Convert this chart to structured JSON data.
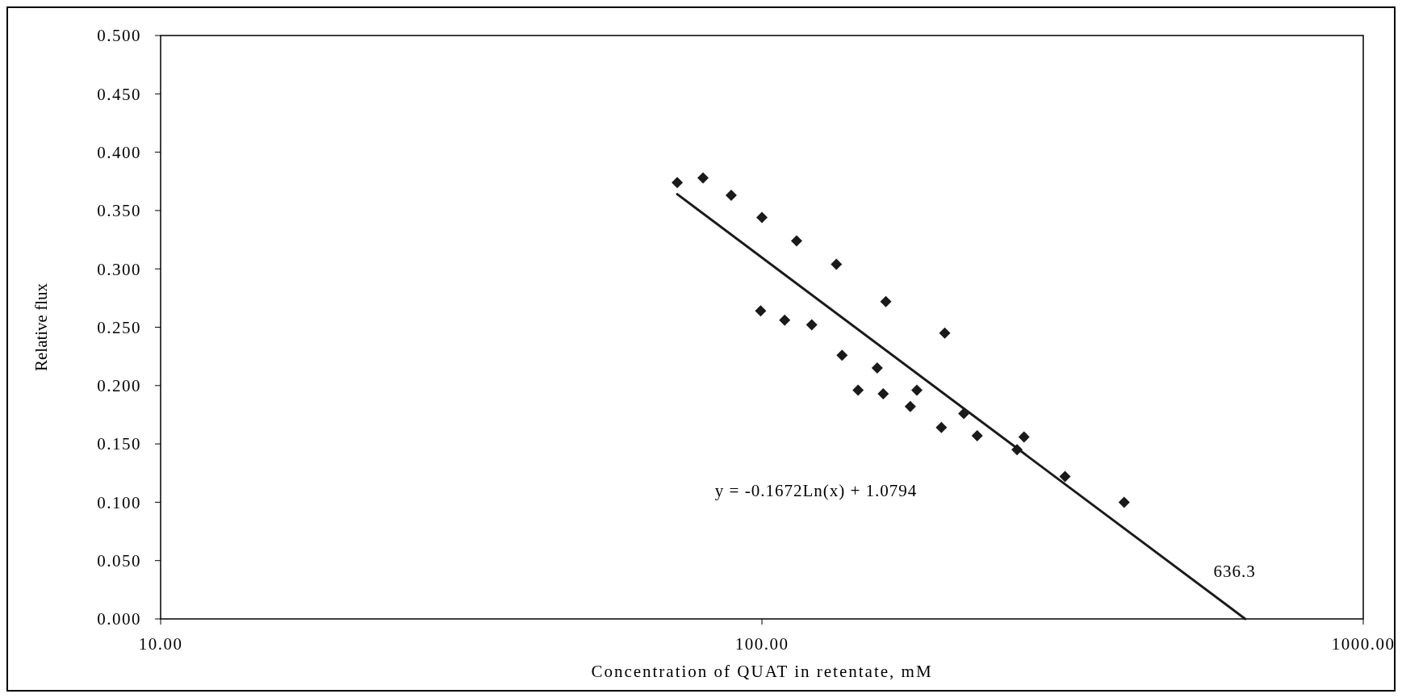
{
  "chart_data": {
    "type": "scatter",
    "xlabel": "Concentration of QUAT in retentate, mM",
    "ylabel": "Relative flux",
    "log": "x",
    "xlim": [
      10,
      1000
    ],
    "xticks": [
      {
        "value": 10,
        "label": "10.00"
      },
      {
        "value": 100,
        "label": "100.00"
      },
      {
        "value": 1000,
        "label": "1000.00"
      }
    ],
    "ylim": [
      0,
      0.5
    ],
    "yticks": [
      {
        "value": 0,
        "label": "0.000"
      },
      {
        "value": 0.05,
        "label": "0.050"
      },
      {
        "value": 0.1,
        "label": "0.100"
      },
      {
        "value": 0.15,
        "label": "0.150"
      },
      {
        "value": 0.2,
        "label": "0.200"
      },
      {
        "value": 0.25,
        "label": "0.250"
      },
      {
        "value": 0.3,
        "label": "0.300"
      },
      {
        "value": 0.35,
        "label": "0.350"
      },
      {
        "value": 0.4,
        "label": "0.400"
      },
      {
        "value": 0.45,
        "label": "0.450"
      },
      {
        "value": 0.5,
        "label": "0.500"
      }
    ],
    "grid": false,
    "marker": "diamond",
    "series": [
      {
        "color": "#1a1a1a",
        "x": [
          72.3,
          79.8,
          88.9,
          100.0,
          114.2,
          133.0,
          160.7,
          99.5,
          109.1,
          121.0,
          135.9,
          155.5,
          144.5,
          159.1,
          201.4,
          181.0,
          176.5,
          216.6,
          198.8,
          228.0,
          265.6,
          272.8,
          319.2,
          400.3
        ],
        "values": [
          0.374,
          0.378,
          0.363,
          0.344,
          0.324,
          0.304,
          0.272,
          0.264,
          0.256,
          0.252,
          0.226,
          0.215,
          0.196,
          0.193,
          0.245,
          0.196,
          0.182,
          0.176,
          0.164,
          0.157,
          0.145,
          0.156,
          0.122,
          0.1
        ]
      },
      {
        "type": "line",
        "color": "#1a1a1a",
        "line_style": "solid",
        "marker": "none",
        "x": [
          72.3,
          636.3
        ],
        "values": [
          0.364,
          0.0
        ]
      }
    ],
    "annotations": [
      "y = -0.1672Ln(x) + 1.0794",
      "636.3"
    ]
  }
}
